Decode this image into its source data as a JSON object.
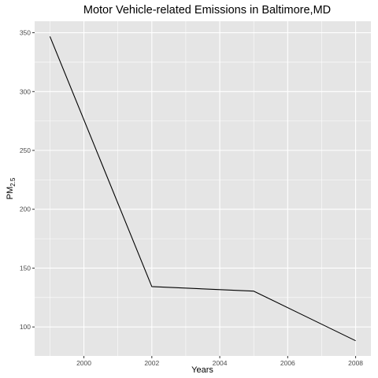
{
  "chart_data": {
    "type": "line",
    "title": "Motor Vehicle-related Emissions in Baltimore,MD",
    "xlabel": "Years",
    "ylabel": {
      "main": "PM",
      "subscript": "2.5"
    },
    "x": [
      1999,
      2002,
      2005,
      2008
    ],
    "series": [
      {
        "values": [
          346.82,
          134.31,
          130.43,
          88.28
        ],
        "color": "#000000"
      }
    ],
    "xlim": [
      1998.55,
      2008.45
    ],
    "ylim": [
      75.36,
      359.74
    ],
    "x_ticks": [
      2000,
      2002,
      2004,
      2006,
      2008
    ],
    "y_ticks": [
      100,
      150,
      200,
      250,
      300,
      350
    ],
    "grid": true,
    "panel_color": "#e5e5e5",
    "grid_color": "#ffffff"
  }
}
